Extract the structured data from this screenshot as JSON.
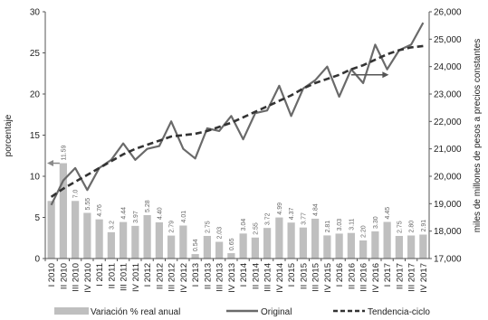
{
  "chart_data": {
    "type": "bar+line",
    "categories": [
      "I 2010",
      "II 2010",
      "III 2010",
      "IV 2010",
      "I 2011",
      "II 2011",
      "III 2011",
      "IV 2011",
      "I 2012",
      "II 2012",
      "III 2012",
      "IV 2012",
      "I 2013",
      "II 2013",
      "III 2013",
      "IV 2013",
      "I 2014",
      "II 2014",
      "III 2014",
      "IV 2014",
      "I 2015",
      "II 2015",
      "III 2015",
      "IV 2015",
      "I 2016",
      "II 2016",
      "III 2016",
      "IV 2016",
      "I 2017",
      "II 2017",
      "III 2017",
      "IV 2017"
    ],
    "bar_series": {
      "name": "Variación % real anual",
      "axis": "left",
      "values": [
        7.0,
        11.59,
        7.0,
        5.55,
        4.76,
        3.2,
        4.44,
        3.97,
        5.28,
        4.4,
        2.79,
        4.01,
        0.54,
        2.75,
        2.03,
        0.65,
        3.04,
        2.55,
        3.72,
        4.99,
        4.37,
        3.77,
        4.84,
        2.81,
        3.03,
        3.11,
        2.2,
        3.3,
        4.45,
        2.75,
        2.8,
        2.91
      ],
      "labels": [
        "",
        "11.59",
        "7.0",
        "5.55",
        "4.76",
        "3.2",
        "4.44",
        "3.97",
        "5.28",
        "4.40",
        "2.79",
        "4.01",
        "0.54",
        "2.75",
        "2.03",
        "0.65",
        "3.04",
        "2.55",
        "3.72",
        "4.99",
        "4.37",
        "3.77",
        "4.84",
        "2.81",
        "3.03",
        "3.11",
        "2.20",
        "3.30",
        "4.45",
        "2.75",
        "2.80",
        "2.91"
      ],
      "color": "#bfbfbf"
    },
    "line_series": [
      {
        "name": "Original",
        "axis": "right",
        "style": "solid",
        "color": "#6a6a6a",
        "values": [
          18950,
          19850,
          20300,
          19500,
          20300,
          20600,
          21200,
          20600,
          21000,
          21100,
          22000,
          21000,
          20650,
          21750,
          21650,
          22200,
          21350,
          22300,
          22400,
          23300,
          22200,
          23200,
          23500,
          24000,
          22900,
          23900,
          23400,
          24800,
          23900,
          24600,
          24800,
          25600
        ]
      },
      {
        "name": "Tendencia-ciclo",
        "axis": "right",
        "style": "dashed",
        "color": "#333333",
        "values": [
          19250,
          19550,
          19800,
          20050,
          20300,
          20550,
          20800,
          21000,
          21150,
          21300,
          21450,
          21500,
          21550,
          21650,
          21800,
          21950,
          22150,
          22350,
          22550,
          22750,
          22950,
          23200,
          23400,
          23550,
          23700,
          23900,
          24050,
          24250,
          24450,
          24600,
          24700,
          24750
        ]
      }
    ],
    "left_axis": {
      "label": "porcentaje",
      "ylim": [
        0,
        30
      ],
      "ticks": [
        "0",
        "5",
        "10",
        "15",
        "20",
        "25",
        "30"
      ]
    },
    "right_axis": {
      "label": "miles de millones de pesos a precios constantes",
      "ylim": [
        17000,
        26000
      ],
      "ticks": [
        "17,000",
        "18,000",
        "19,000",
        "20,000",
        "21,000",
        "22,000",
        "23,000",
        "24,000",
        "25,000",
        "26,000"
      ]
    },
    "grid": false,
    "legend_position": "bottom",
    "legend": [
      "Variación % real anual",
      "Original",
      "Tendencia-ciclo"
    ]
  }
}
